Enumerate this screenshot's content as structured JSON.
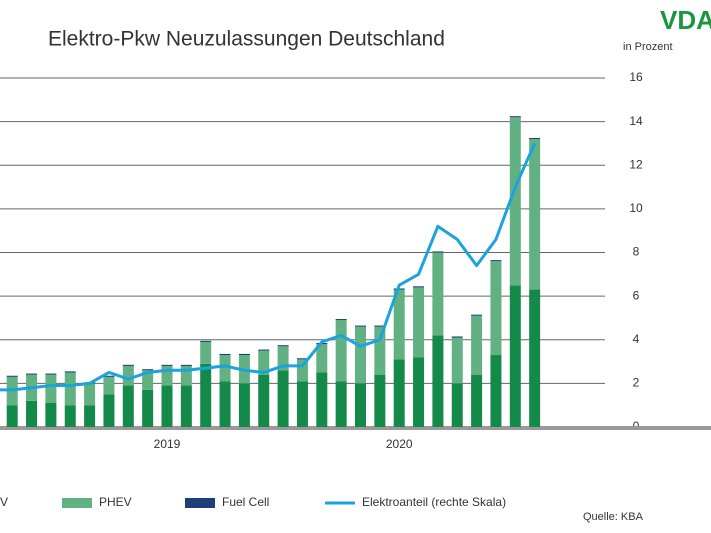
{
  "chart_data": {
    "type": "stacked_bar_line",
    "title": "Elektro-Pkw Neuzulassungen Deutschland",
    "logo": "VDA",
    "y2_label": "in Prozent",
    "source": "Quelle: KBA",
    "categories": [
      null,
      null,
      null,
      null,
      null,
      null,
      null,
      null,
      null,
      "2019",
      null,
      null,
      null,
      null,
      null,
      null,
      null,
      null,
      null,
      null,
      null,
      "2020",
      null,
      null,
      null,
      null,
      null,
      null,
      null
    ],
    "ylim": [
      0,
      16
    ],
    "y2lim": [
      0,
      16
    ],
    "y2ticks": [
      0,
      2,
      4,
      6,
      8,
      10,
      12,
      14,
      16
    ],
    "grid": true,
    "series": [
      {
        "name": "V",
        "color": "#148a4a",
        "values": [
          1.3,
          1.0,
          1.2,
          1.1,
          1.0,
          1.0,
          1.5,
          1.9,
          1.7,
          1.9,
          1.9,
          2.9,
          2.1,
          2.0,
          2.4,
          2.6,
          2.1,
          2.5,
          2.1,
          2.0,
          2.4,
          3.1,
          3.2,
          4.2,
          2.0,
          2.4,
          3.3,
          6.5,
          6.3
        ]
      },
      {
        "name": "PHEV",
        "color": "#62b183",
        "values": [
          1.1,
          1.3,
          1.2,
          1.3,
          1.5,
          1.0,
          0.8,
          0.9,
          0.9,
          0.9,
          0.9,
          1.0,
          1.2,
          1.3,
          1.1,
          1.1,
          1.0,
          1.3,
          2.8,
          2.6,
          2.2,
          3.2,
          3.2,
          3.8,
          2.1,
          2.7,
          4.3,
          7.7,
          6.9
        ]
      },
      {
        "name": "Fuel Cell",
        "color": "#1d3f7a",
        "values": [
          0.05,
          0.05,
          0.05,
          0.05,
          0.05,
          0.05,
          0.05,
          0.05,
          0.05,
          0.05,
          0.05,
          0.05,
          0.05,
          0.05,
          0.05,
          0.05,
          0.05,
          0.05,
          0.05,
          0.05,
          0.05,
          0.05,
          0.05,
          0.05,
          0.05,
          0.05,
          0.05,
          0.05,
          0.05
        ]
      },
      {
        "name": "Elektroanteil (rechte Skala)",
        "color": "#1aa3dd",
        "axis": "y2",
        "values": [
          1.7,
          1.7,
          1.8,
          1.9,
          1.9,
          2.0,
          2.5,
          2.2,
          2.5,
          2.6,
          2.6,
          2.7,
          2.8,
          2.6,
          2.5,
          2.8,
          2.8,
          3.9,
          4.2,
          3.7,
          4.0,
          6.5,
          7.0,
          9.2,
          8.6,
          7.4,
          8.6,
          11.0,
          13.0
        ]
      }
    ]
  }
}
